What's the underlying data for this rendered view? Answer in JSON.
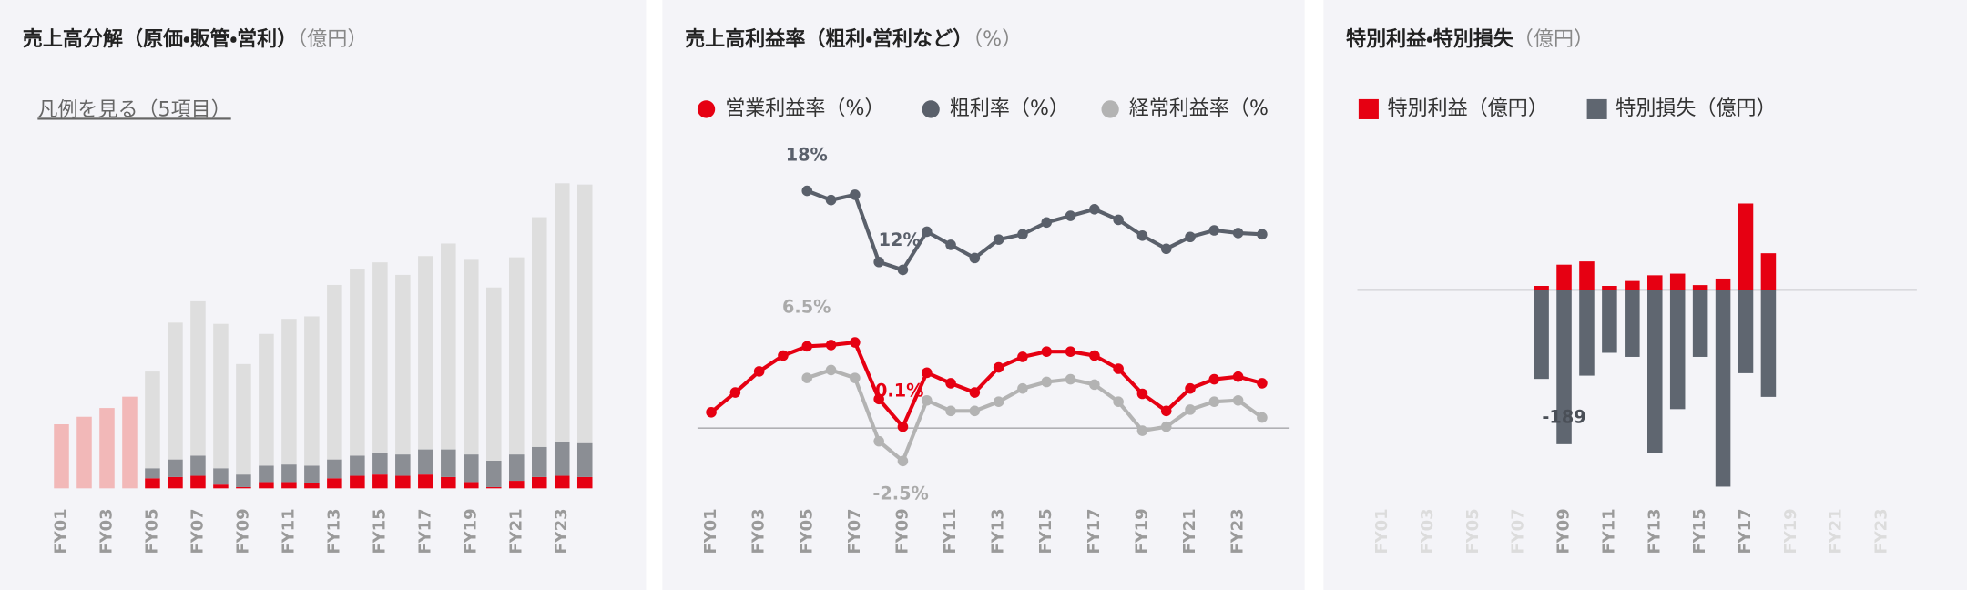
{
  "chart_data": [
    {
      "type": "bar",
      "stacked": true,
      "title": "売上高分解（原価・販管・営利）",
      "unit": "（億円）",
      "legend_link": "凡例を見る（5項目）",
      "categories": [
        "FY01",
        null,
        "FY03",
        null,
        "FY05",
        null,
        "FY07",
        null,
        "FY09",
        null,
        "FY11",
        null,
        "FY13",
        null,
        "FY15",
        null,
        "FY17",
        null,
        "FY19",
        null,
        "FY21",
        null,
        "FY23",
        null
      ],
      "ylim": [
        0,
        250
      ],
      "series": [
        {
          "color": "#e60012",
          "values": [
            null,
            null,
            null,
            null,
            8,
            9,
            10,
            3,
            1,
            5,
            5,
            4,
            8,
            10,
            11,
            10,
            11,
            9,
            5,
            1,
            6,
            9,
            10,
            9
          ]
        },
        {
          "color": "#8b8e94",
          "values": [
            null,
            null,
            null,
            null,
            8,
            14,
            16,
            13,
            10,
            13,
            14,
            14,
            15,
            16,
            17,
            17,
            20,
            22,
            22,
            21,
            21,
            24,
            27,
            27
          ]
        },
        {
          "color": "#dedede",
          "values": [
            null,
            null,
            null,
            null,
            77,
            109,
            123,
            115,
            88,
            105,
            116,
            119,
            139,
            149,
            152,
            143,
            154,
            164,
            155,
            138,
            157,
            183,
            206,
            206
          ]
        },
        {
          "color": "#f2b8b8",
          "values": [
            51,
            57,
            64,
            73,
            null,
            null,
            null,
            null,
            null,
            null,
            null,
            null,
            null,
            null,
            null,
            null,
            null,
            null,
            null,
            null,
            null,
            null,
            null,
            null
          ]
        }
      ]
    },
    {
      "type": "line",
      "title": "売上高利益率（粗利・営利など）",
      "unit": "（%）",
      "categories": [
        "FY01",
        null,
        "FY03",
        null,
        "FY05",
        null,
        "FY07",
        null,
        "FY09",
        null,
        "FY11",
        null,
        "FY13",
        null,
        "FY15",
        null,
        "FY17",
        null,
        "FY19",
        null,
        "FY21",
        null,
        "FY23",
        null
      ],
      "ylim": [
        -4,
        20
      ],
      "annotations": [
        "18%",
        "12%",
        "6.5%",
        "0.1%",
        "-2.5%"
      ],
      "series": [
        {
          "name": "営業利益率（%）",
          "color": "#e60012",
          "values": [
            1.2,
            2.7,
            4.3,
            5.5,
            6.2,
            6.3,
            6.5,
            2.2,
            0.1,
            4.2,
            3.4,
            2.7,
            4.6,
            5.4,
            5.8,
            5.8,
            5.5,
            4.5,
            2.6,
            1.3,
            3.0,
            3.7,
            3.9,
            3.4
          ]
        },
        {
          "name": "粗利率（%）",
          "color": "#5a606b",
          "values": [
            null,
            null,
            null,
            null,
            18.0,
            17.3,
            17.7,
            12.6,
            12.0,
            14.9,
            13.9,
            12.9,
            14.3,
            14.7,
            15.6,
            16.1,
            16.6,
            15.8,
            14.6,
            13.6,
            14.5,
            15.0,
            14.8,
            14.7
          ]
        },
        {
          "name": "経常利益率（%）",
          "color": "#b3b3b3",
          "values": [
            null,
            null,
            null,
            null,
            3.8,
            4.4,
            3.8,
            -1.0,
            -2.5,
            2.1,
            1.3,
            1.3,
            2.0,
            3.0,
            3.5,
            3.7,
            3.3,
            2.0,
            -0.2,
            0.1,
            1.4,
            2.0,
            2.1,
            0.8
          ]
        }
      ]
    },
    {
      "type": "bar",
      "stacked": true,
      "title": "特別利益・特別損失",
      "unit": "（億円）",
      "categories": [
        "FY01",
        null,
        "FY03",
        null,
        "FY05",
        null,
        "FY07",
        null,
        "FY09",
        null,
        "FY11",
        null,
        "FY13",
        null,
        "FY15",
        null,
        "FY17",
        null,
        "FY19",
        null,
        "FY21",
        null,
        "FY23",
        null
      ],
      "ylim": [
        -250,
        150
      ],
      "series": [
        {
          "name": "特別利益（億円）",
          "color": "#e60012",
          "values": [
            null,
            null,
            null,
            null,
            null,
            null,
            null,
            5,
            31,
            35,
            5,
            11,
            18,
            20,
            6,
            14,
            106,
            45,
            null,
            null,
            null,
            null,
            null,
            null
          ]
        },
        {
          "name": "特別損失（億円）",
          "color": "#5f6670",
          "values": [
            null,
            null,
            null,
            null,
            null,
            null,
            null,
            -109,
            -189,
            -105,
            -77,
            -82,
            -200,
            -146,
            -82,
            -241,
            -102,
            -131,
            null,
            null,
            null,
            null,
            null,
            null
          ]
        }
      ]
    }
  ]
}
